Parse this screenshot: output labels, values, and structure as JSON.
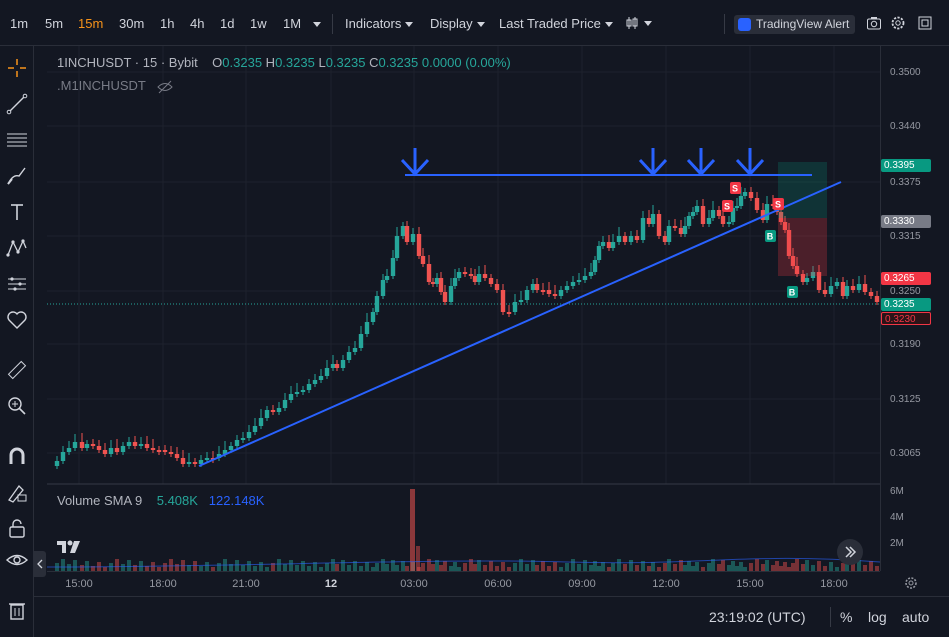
{
  "toolbar": {
    "timeframes": [
      "1m",
      "5m",
      "15m",
      "30m",
      "1h",
      "4h",
      "1d",
      "1w",
      "1M"
    ],
    "active_timeframe": "15m",
    "indicators_label": "Indicators",
    "display_label": "Display",
    "price_type_label": "Last Traded Price",
    "alert_label": "TradingView Alert"
  },
  "legend": {
    "symbol": "1INCHUSDT",
    "interval": "15",
    "exchange": "Bybit",
    "o_label": "O",
    "o_value": "0.3235",
    "h_label": "H",
    "h_value": "0.3235",
    "l_label": "L",
    "l_value": "0.3235",
    "c_label": "C",
    "c_value": "0.3235",
    "change": "0.0000 (0.00%)",
    "secondary_symbol": ".M1INCHUSDT"
  },
  "volume_legend": {
    "label": "Volume SMA 9",
    "value1": "5.408K",
    "value2": "122.148K"
  },
  "price_axis": {
    "ticks": [
      "0.3500",
      "0.3440",
      "0.3375",
      "0.3315",
      "0.3250",
      "0.3190",
      "0.3125",
      "0.3065"
    ],
    "volume_ticks": [
      "6M",
      "4M",
      "2M"
    ],
    "tags": [
      {
        "value": "0.3395",
        "color": "#089981"
      },
      {
        "value": "0.3330",
        "color": "#787b86"
      },
      {
        "value": "0.3265",
        "color": "#f23645"
      },
      {
        "value": "0.3235",
        "color": "#089981"
      },
      {
        "value": "0.3230",
        "color": "#2a1418"
      }
    ]
  },
  "time_axis": {
    "labels": [
      "15:00",
      "18:00",
      "21:00",
      "12",
      "03:00",
      "06:00",
      "09:00",
      "12:00",
      "15:00",
      "18:00"
    ]
  },
  "markers": {
    "sell": "S",
    "buy": "B"
  },
  "footer": {
    "clock": "23:19:02 (UTC)",
    "percent": "%",
    "log": "log",
    "auto": "auto"
  },
  "colors": {
    "up": "#26a69a",
    "down": "#ef5350",
    "trendline": "#2962ff",
    "background": "#131722",
    "grid": "#1e222d"
  },
  "icons": [
    "crosshair-icon",
    "trendline-icon",
    "fib-icon",
    "brush-icon",
    "text-icon",
    "pattern-icon",
    "prediction-icon",
    "heart-icon",
    "ruler-icon",
    "zoom-icon",
    "magnet-icon",
    "lock-drawing-icon",
    "lock-icon",
    "eye-icon",
    "trash-icon",
    "camera-icon",
    "gear-icon",
    "fullscreen-icon",
    "candle-type-icon",
    "scroll-right-icon",
    "chevron-left-icon",
    "settings-icon"
  ]
}
